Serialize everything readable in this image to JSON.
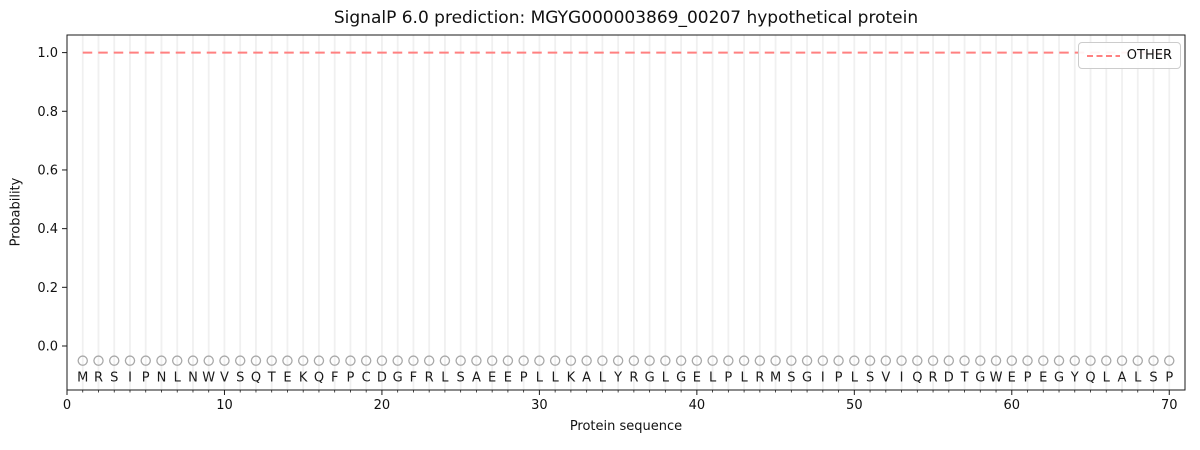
{
  "chart_data": {
    "type": "line",
    "title": "SignalP 6.0 prediction: MGYG000003869_00207 hypothetical protein",
    "xlabel": "Protein sequence",
    "ylabel": "Probability",
    "xlim": [
      0,
      71
    ],
    "ylim": [
      -0.15,
      1.06
    ],
    "xticks": [
      0,
      10,
      20,
      30,
      40,
      50,
      60,
      70
    ],
    "yticks": [
      0,
      0.2,
      0.4,
      0.6,
      0.8,
      1
    ],
    "grid": "vertical gridline at every residue position",
    "legend_position": "upper right",
    "series": [
      {
        "name": "OTHER",
        "color": "#ff8080",
        "linestyle": "dashed",
        "x_start": 1,
        "x_step": 1,
        "values": [
          1,
          1,
          1,
          1,
          1,
          1,
          1,
          1,
          1,
          1,
          1,
          1,
          1,
          1,
          1,
          1,
          1,
          1,
          1,
          1,
          1,
          1,
          1,
          1,
          1,
          1,
          1,
          1,
          1,
          1,
          1,
          1,
          1,
          1,
          1,
          1,
          1,
          1,
          1,
          1,
          1,
          1,
          1,
          1,
          1,
          1,
          1,
          1,
          1,
          1,
          1,
          1,
          1,
          1,
          1,
          1,
          1,
          1,
          1,
          1,
          1,
          1,
          1,
          1,
          1,
          1,
          1,
          1,
          1,
          1
        ]
      }
    ],
    "sequence": "MRSIPNLNWVSQTEKQFPCDGFRLSAEEPLLKALYRGLGELPLRMSGIPLSVIQRDTGWEPEGYQLALSP",
    "residue_marker": {
      "shape": "open-circle",
      "color": "#a8a8a8",
      "y": -0.05
    },
    "sequence_letter_y": -0.105
  },
  "colors": {
    "background": "#ffffff",
    "grid": "#f0f0f0",
    "spine": "#1a1a1a",
    "text": "#111111",
    "sequence_letter": "#1a1a1a",
    "marker": "#a8a8a8",
    "other_line": "#ff8080",
    "legend_border": "#cccccc"
  }
}
